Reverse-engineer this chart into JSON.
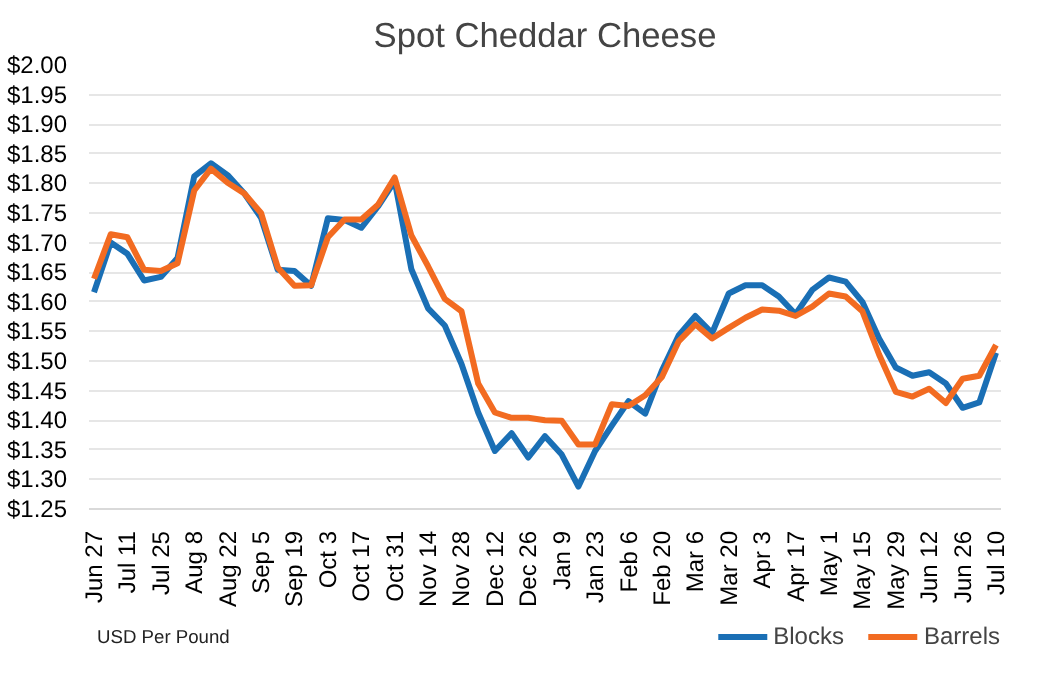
{
  "chart_data": {
    "type": "line",
    "title": "Spot Cheddar Cheese",
    "categories": [
      "Jun 27",
      null,
      "Jul 11",
      null,
      "Jul 25",
      null,
      "Aug 8",
      null,
      "Aug 22",
      null,
      "Sep 5",
      null,
      "Sep 19",
      null,
      "Oct 3",
      null,
      "Oct 17",
      null,
      "Oct 31",
      null,
      "Nov 14",
      null,
      "Nov 28",
      null,
      "Dec 12",
      null,
      "Dec 26",
      null,
      "Jan 9",
      null,
      "Jan 23",
      null,
      "Feb 6",
      null,
      "Feb 20",
      null,
      "Mar 6",
      null,
      "Mar 20",
      null,
      "Apr 3",
      null,
      "Apr 17",
      null,
      "May 1",
      null,
      "May 15",
      null,
      "May 29",
      null,
      "Jun 12",
      null,
      "Jun 26",
      null,
      "Jul 10"
    ],
    "series": [
      {
        "name": "Blocks",
        "color": "#1a6fb5",
        "values": [
          1.616,
          1.7,
          1.681,
          1.636,
          1.642,
          1.674,
          1.812,
          1.834,
          1.814,
          1.783,
          1.742,
          1.654,
          1.652,
          1.627,
          1.741,
          1.738,
          1.725,
          1.761,
          1.804,
          1.655,
          1.589,
          1.56,
          1.495,
          1.413,
          1.348,
          1.378,
          1.337,
          1.373,
          1.342,
          1.288,
          1.348,
          1.391,
          1.432,
          1.411,
          1.484,
          1.543,
          1.576,
          1.547,
          1.614,
          1.628,
          1.628,
          1.609,
          1.579,
          1.62,
          1.641,
          1.634,
          1.6,
          1.538,
          1.489,
          1.475,
          1.481,
          1.462,
          1.421,
          1.43,
          1.514
        ]
      },
      {
        "name": "Barrels",
        "color": "#f26b21",
        "values": [
          1.639,
          1.714,
          1.709,
          1.654,
          1.652,
          1.665,
          1.788,
          1.825,
          1.801,
          1.783,
          1.75,
          1.658,
          1.627,
          1.628,
          1.709,
          1.739,
          1.739,
          1.764,
          1.81,
          1.712,
          1.66,
          1.605,
          1.584,
          1.462,
          1.413,
          1.404,
          1.404,
          1.4,
          1.399,
          1.359,
          1.359,
          1.427,
          1.424,
          1.442,
          1.473,
          1.533,
          1.562,
          1.538,
          1.556,
          1.573,
          1.587,
          1.585,
          1.576,
          1.592,
          1.614,
          1.609,
          1.584,
          1.511,
          1.448,
          1.44,
          1.453,
          1.429,
          1.47,
          1.475,
          1.527
        ]
      }
    ],
    "ylim": [
      1.25,
      2.0
    ],
    "yticks": [
      {
        "value": 1.25,
        "label": "$1.25"
      },
      {
        "value": 1.3,
        "label": "$1.30"
      },
      {
        "value": 1.35,
        "label": "$1.35"
      },
      {
        "value": 1.4,
        "label": "$1.40"
      },
      {
        "value": 1.45,
        "label": "$1.45"
      },
      {
        "value": 1.5,
        "label": "$1.50"
      },
      {
        "value": 1.55,
        "label": "$1.55"
      },
      {
        "value": 1.6,
        "label": "$1.60"
      },
      {
        "value": 1.65,
        "label": "$1.65"
      },
      {
        "value": 1.7,
        "label": "$1.70"
      },
      {
        "value": 1.75,
        "label": "$1.75"
      },
      {
        "value": 1.8,
        "label": "$1.80"
      },
      {
        "value": 1.85,
        "label": "$1.85"
      },
      {
        "value": 1.9,
        "label": "$1.90"
      },
      {
        "value": 1.95,
        "label": "$1.95"
      },
      {
        "value": 2.0,
        "label": "$2.00"
      }
    ],
    "grid": "y",
    "legend": "bottom right",
    "annotations": [
      "USD Per Pound"
    ]
  }
}
